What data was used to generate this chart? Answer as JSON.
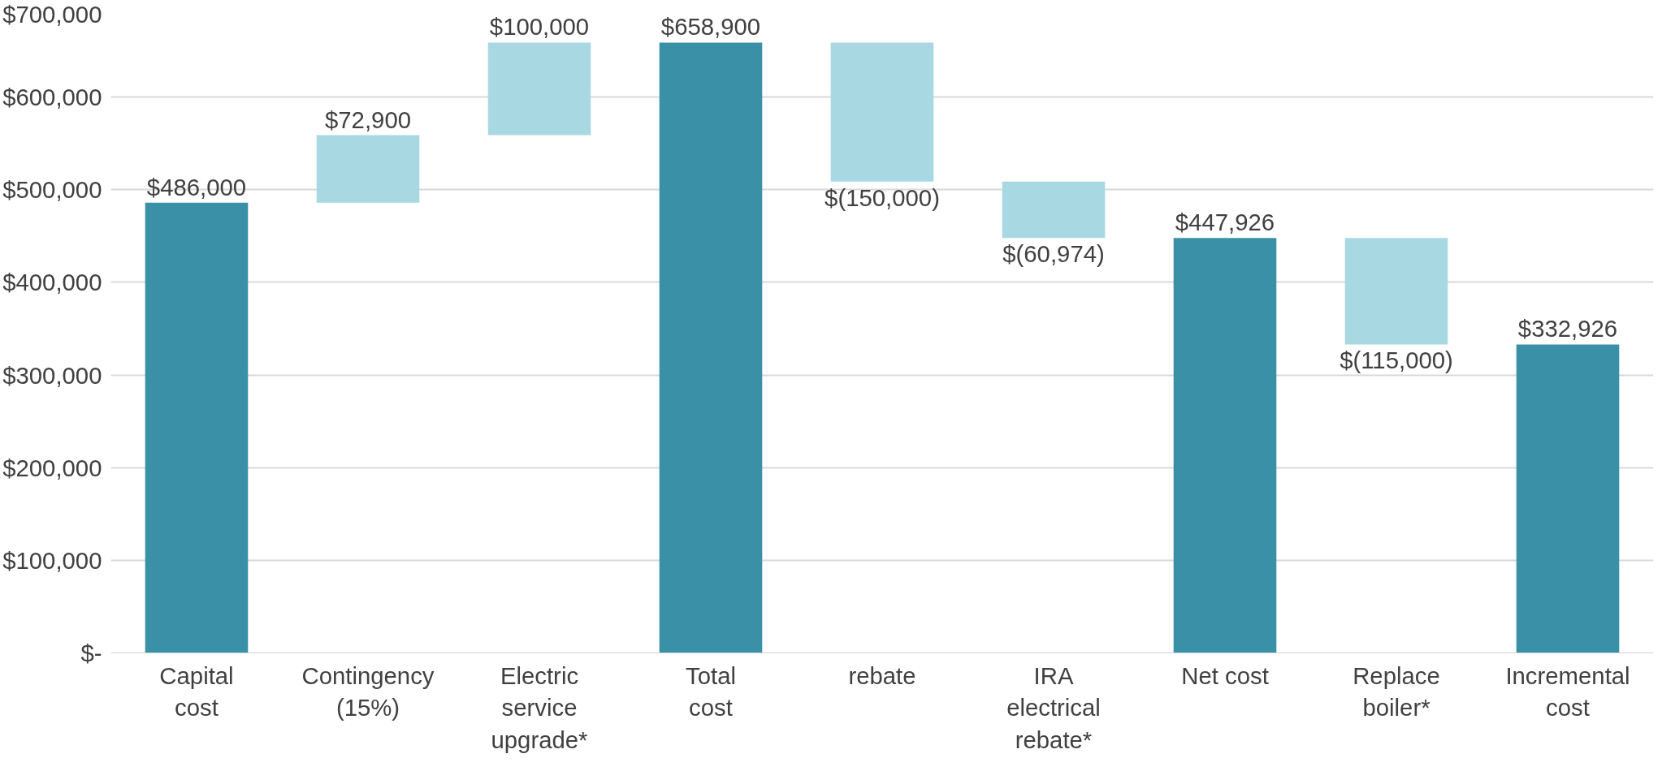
{
  "chart_data": {
    "type": "bar",
    "categories": [
      "Capital\ncost",
      "Contingency\n(15%)",
      "Electric\nservice\nupgrade*",
      "Total\ncost",
      "rebate",
      "IRA\nelectrical\nrebate*",
      "Net cost",
      "Replace\nboiler*",
      "Incremental\ncost"
    ],
    "values": [
      486000,
      72900,
      100000,
      658900,
      -150000,
      -60974,
      447926,
      -115000,
      332926
    ],
    "base": [
      0,
      486000,
      558900,
      0,
      658900,
      508900,
      0,
      447926,
      0
    ],
    "colors": [
      "#3a91a7",
      "#a8d9e3",
      "#a8d9e3",
      "#3a91a7",
      "#a8d9e3",
      "#a8d9e3",
      "#3a91a7",
      "#a8d9e3",
      "#3a91a7"
    ],
    "value_labels": [
      "$486,000",
      "$72,900",
      "$100,000",
      "$658,900",
      "$(150,000)",
      "$(60,974)",
      "$447,926",
      "$(115,000)",
      "$332,926"
    ],
    "ylim": [
      0,
      700000
    ],
    "yticks": [
      {
        "value": 0,
        "label": "$-"
      },
      {
        "value": 100000,
        "label": "$100,000"
      },
      {
        "value": 200000,
        "label": "$200,000"
      },
      {
        "value": 300000,
        "label": "$300,000"
      },
      {
        "value": 400000,
        "label": "$400,000"
      },
      {
        "value": 500000,
        "label": "$500,000"
      },
      {
        "value": 600000,
        "label": "$600,000"
      },
      {
        "value": 700000,
        "label": "$700,000"
      }
    ],
    "grid": "y"
  }
}
